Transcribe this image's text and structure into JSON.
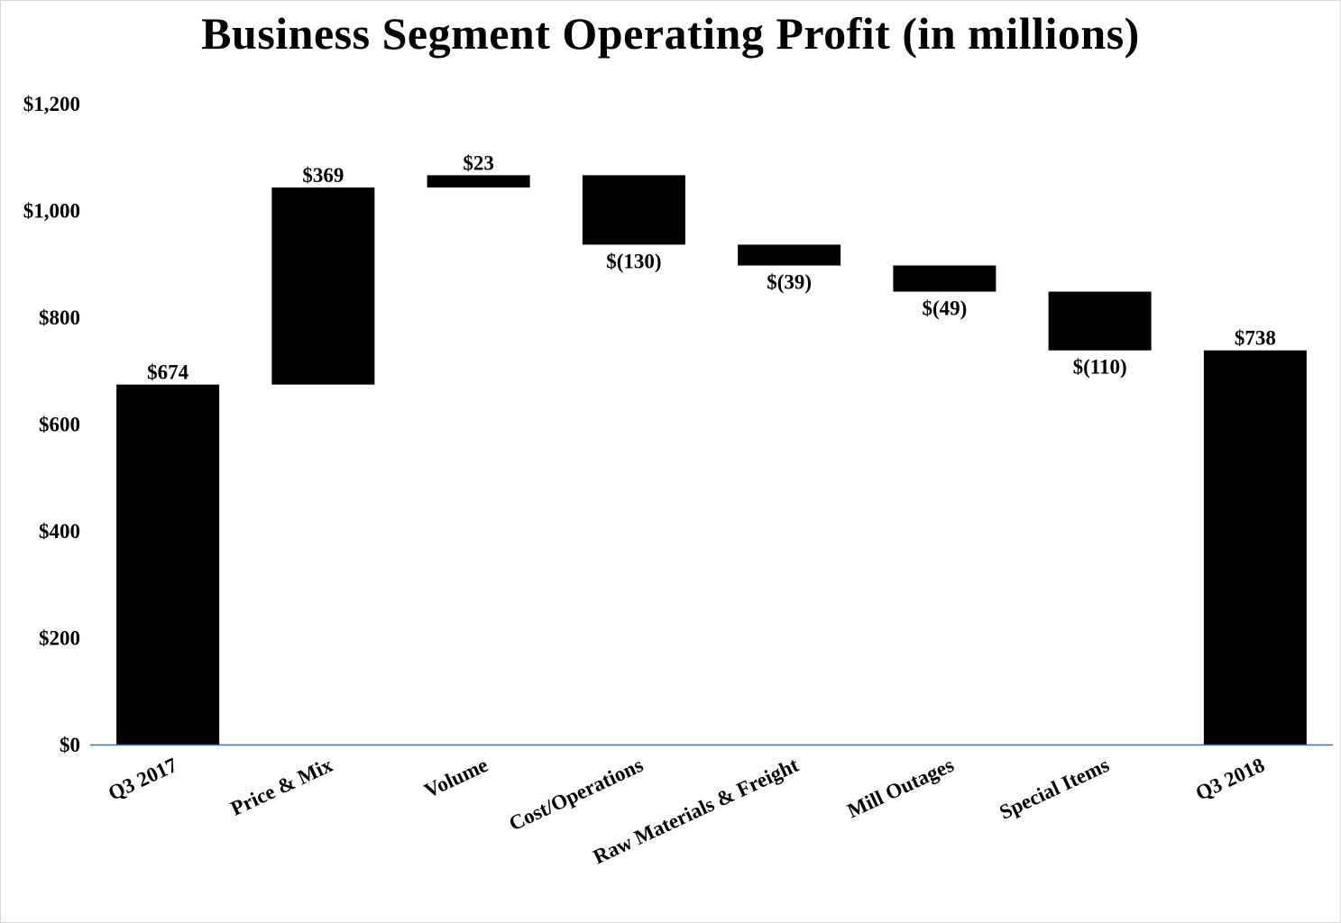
{
  "chart_data": {
    "type": "bar",
    "subtype": "waterfall",
    "title": "Business Segment Operating Profit (in millions)",
    "xlabel": "",
    "ylabel": "",
    "ylim": [
      0,
      1200
    ],
    "yticks": [
      0,
      200,
      400,
      600,
      800,
      1000,
      1200
    ],
    "ytick_labels": [
      "$0",
      "$200",
      "$400",
      "$600",
      "$800",
      "$1,000",
      "$1,200"
    ],
    "grid": false,
    "legend": "none",
    "bar_color": "#000000",
    "axis_color": "#44729e",
    "categories": [
      "Q3 2017",
      "Price & Mix",
      "Volume",
      "Cost/Operations",
      "Raw Materials & Freight",
      "Mill Outages",
      "Special Items",
      "Q3 2018"
    ],
    "values": [
      674,
      369,
      23,
      -130,
      -39,
      -49,
      -110,
      738
    ],
    "kinds": [
      "total",
      "delta",
      "delta",
      "delta",
      "delta",
      "delta",
      "delta",
      "total"
    ],
    "data_labels": [
      "$674",
      "$369",
      "$23",
      "$(130)",
      "$(39)",
      "$(49)",
      "$(110)",
      "$738"
    ]
  }
}
